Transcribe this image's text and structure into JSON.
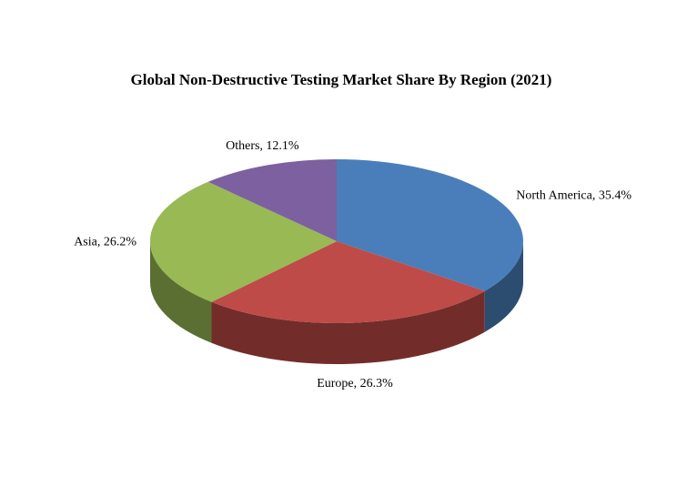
{
  "chart_data": {
    "type": "pie",
    "title": "Global Non-Destructive Testing Market Share By Region (2021)",
    "labels": [
      "North America,  35.4%",
      "Europe, 26.3%",
      "Asia, 26.2%",
      "Others, 12.1%"
    ],
    "values": [
      35.4,
      26.3,
      26.2,
      12.1
    ],
    "colors": [
      "#4a7ebb",
      "#be4b48",
      "#98b954",
      "#7d60a0"
    ],
    "three_d": true
  }
}
